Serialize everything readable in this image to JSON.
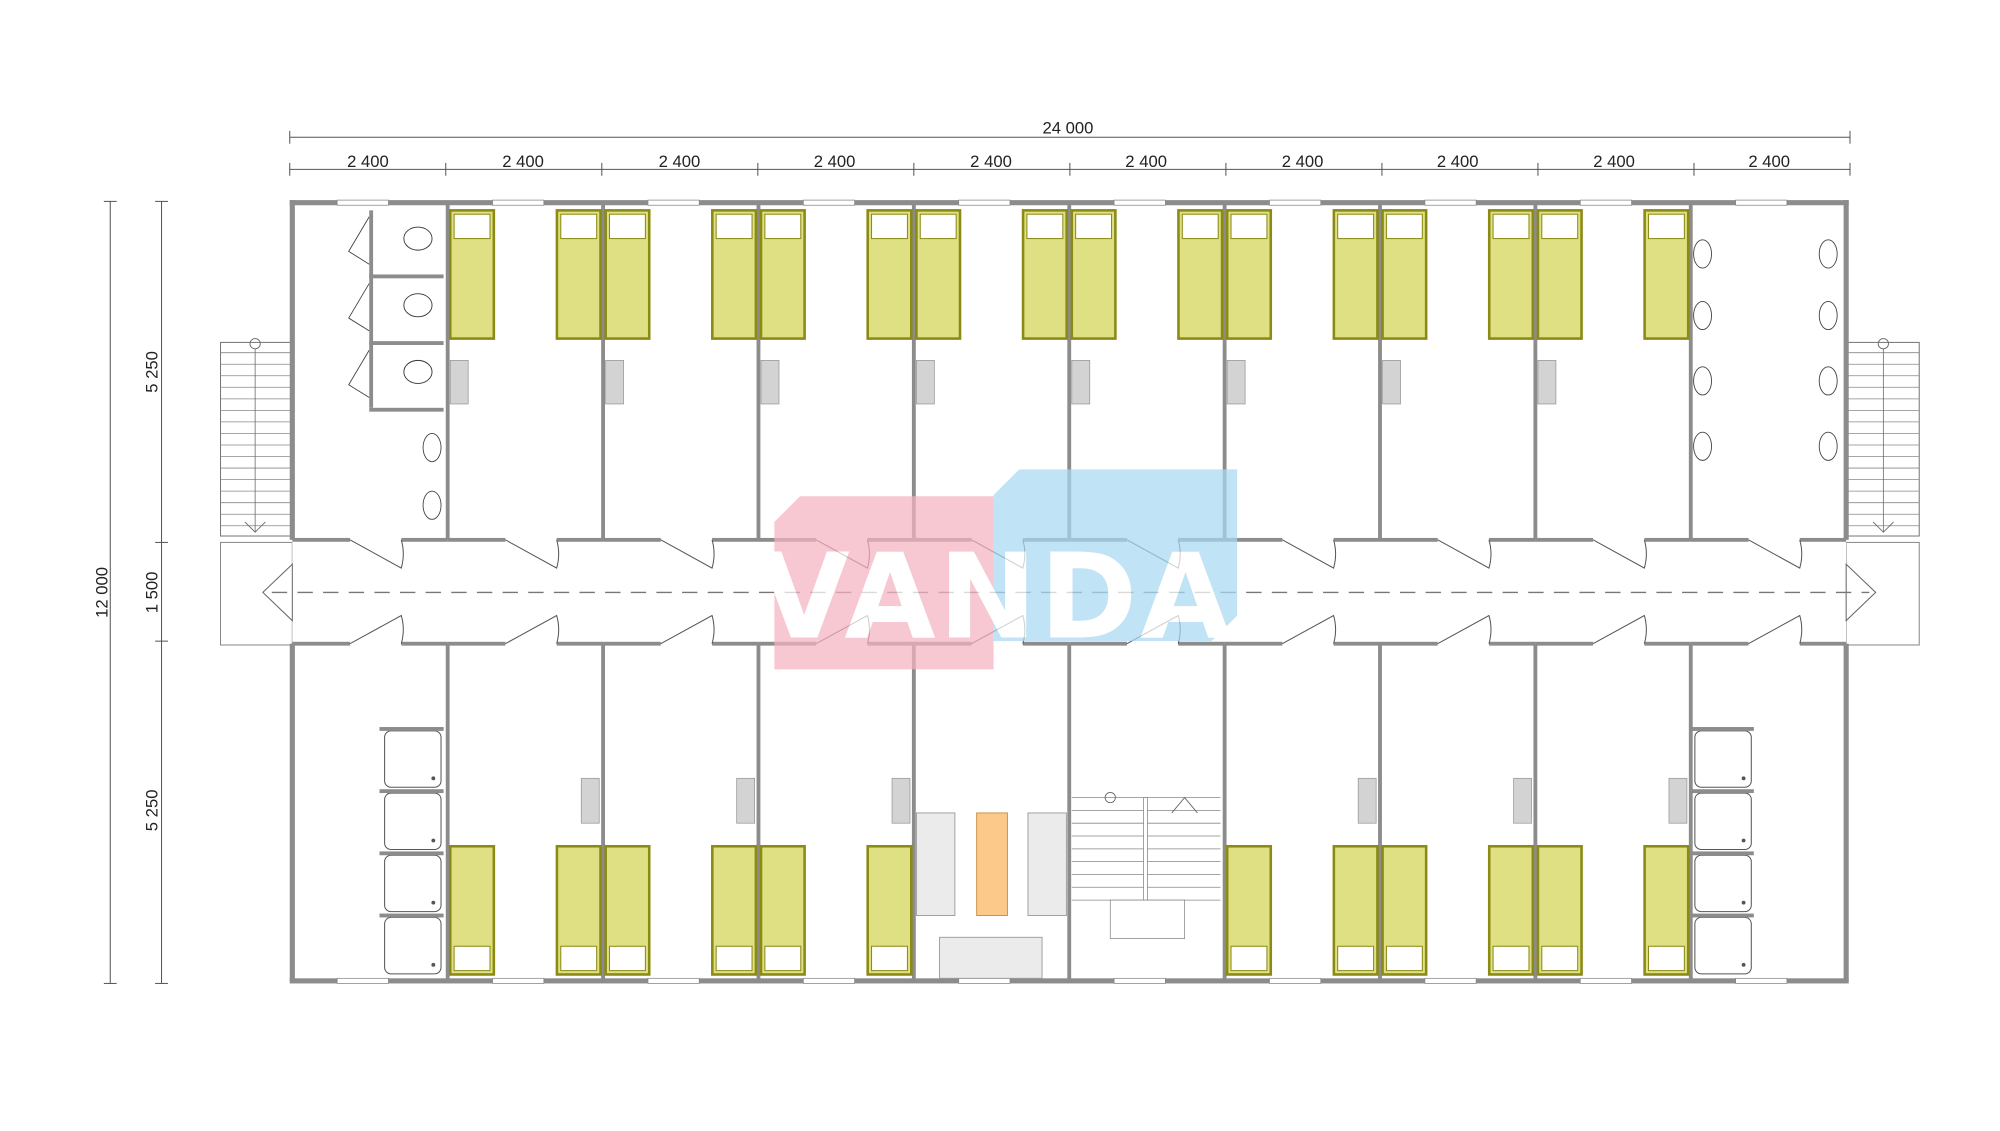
{
  "dimensions": {
    "overall_width": "24 000",
    "module_widths": [
      "2 400",
      "2 400",
      "2 400",
      "2 400",
      "2 400",
      "2 400",
      "2 400",
      "2 400",
      "2 400",
      "2 400"
    ],
    "overall_depth": "12 000",
    "depth_segments": [
      "5 250",
      "1 500",
      "5 250"
    ]
  },
  "watermark": {
    "text": "VANDA",
    "pink": "#f4b3c0",
    "blue": "#a8d9f2"
  },
  "colors": {
    "wall": "#8c8c8c",
    "bed_fill": "#dfe083",
    "bed_border": "#8a8a14",
    "table_fill": "#fcc98b",
    "desk_fill": "#d3d3d3"
  }
}
